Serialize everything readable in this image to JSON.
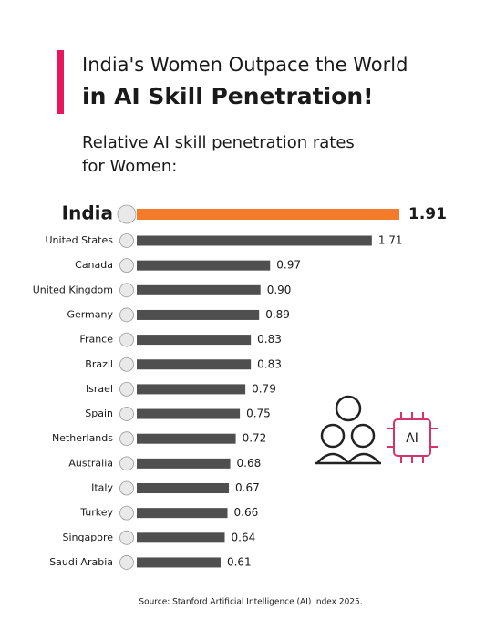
{
  "chart_data": {
    "type": "bar",
    "orientation": "horizontal",
    "title": [
      "India's Women Outpace the World",
      "in AI Skill Penetration!"
    ],
    "subtitle": [
      "Relative AI skill penetration rates",
      "for Women:"
    ],
    "source": "Source: Stanford Artificial Intelligence (AI) Index 2025.",
    "categories": [
      "India",
      "United States",
      "Canada",
      "United Kingdom",
      "Germany",
      "France",
      "Brazil",
      "Israel",
      "Spain",
      "Netherlands",
      "Australia",
      "Italy",
      "Turkey",
      "Singapore",
      "Saudi Arabia"
    ],
    "values": [
      1.91,
      1.71,
      0.97,
      0.9,
      0.89,
      0.83,
      0.83,
      0.79,
      0.75,
      0.72,
      0.68,
      0.67,
      0.66,
      0.64,
      0.61
    ],
    "value_labels": [
      "1.91",
      "1.71",
      "0.97",
      "0.90",
      "0.89",
      "0.83",
      "0.83",
      "0.79",
      "0.75",
      "0.72",
      "0.68",
      "0.67",
      "0.66",
      "0.64",
      "0.61"
    ],
    "colors": [
      "#f47b2a",
      "#4f4f4f",
      "#4f4f4f",
      "#4f4f4f",
      "#4f4f4f",
      "#4f4f4f",
      "#4f4f4f",
      "#4f4f4f",
      "#4f4f4f",
      "#4f4f4f",
      "#4f4f4f",
      "#4f4f4f",
      "#4f4f4f",
      "#4f4f4f",
      "#4f4f4f"
    ]
  },
  "illustration": {
    "chip_text": "AI"
  }
}
